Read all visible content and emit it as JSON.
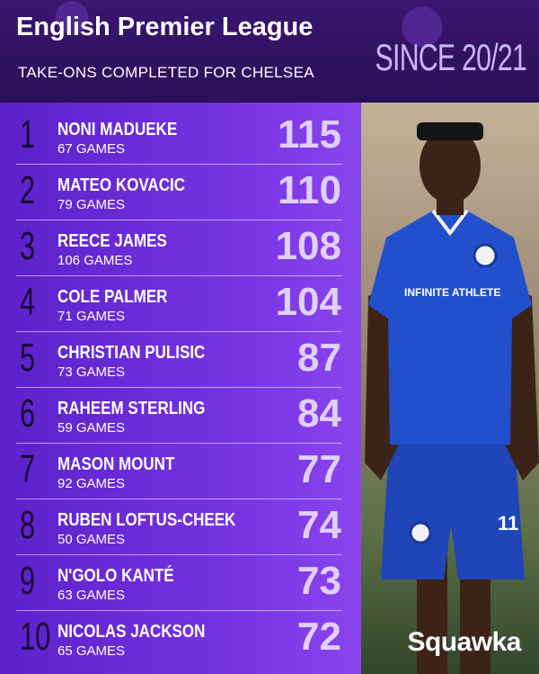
{
  "header": {
    "title": "English Premier League",
    "subtitle": "TAKE-ONS COMPLETED FOR CHELSEA",
    "since": "SINCE 20/21"
  },
  "rows": [
    {
      "rank": "1",
      "name": "NONI MADUEKE",
      "games": "67 GAMES",
      "value": "115"
    },
    {
      "rank": "2",
      "name": "MATEO KOVACIC",
      "games": "79 GAMES",
      "value": "110"
    },
    {
      "rank": "3",
      "name": "REECE JAMES",
      "games": "106 GAMES",
      "value": "108"
    },
    {
      "rank": "4",
      "name": "COLE PALMER",
      "games": "71 GAMES",
      "value": "104"
    },
    {
      "rank": "5",
      "name": "CHRISTIAN PULISIC",
      "games": "73 GAMES",
      "value": "87"
    },
    {
      "rank": "6",
      "name": "RAHEEM STERLING",
      "games": "59 GAMES",
      "value": "84"
    },
    {
      "rank": "7",
      "name": "MASON MOUNT",
      "games": "92 GAMES",
      "value": "77"
    },
    {
      "rank": "8",
      "name": "RUBEN LOFTUS-CHEEK",
      "games": "50 GAMES",
      "value": "74"
    },
    {
      "rank": "9",
      "name": "N'GOLO KANTÉ",
      "games": "63 GAMES",
      "value": "73"
    },
    {
      "rank": "10",
      "name": "NICOLAS JACKSON",
      "games": "65 GAMES",
      "value": "72"
    }
  ],
  "photo": {
    "kit_text": "INFINITE ATHLETE",
    "shirt_number": "11"
  },
  "brand": {
    "logo": "Squawka"
  },
  "colors": {
    "panel": "#6a2bd8",
    "header": "#2c0f58",
    "accent": "#c9b6ff"
  }
}
